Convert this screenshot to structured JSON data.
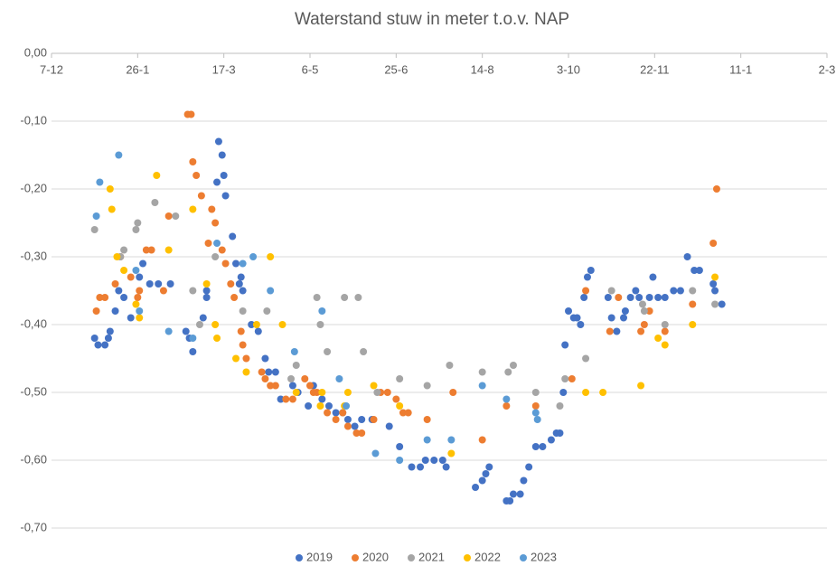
{
  "chart_data": {
    "type": "scatter",
    "title": "Waterstand stuw in meter t.o.v. NAP",
    "xlim": [
      0,
      450
    ],
    "xticks": [
      {
        "value": 0,
        "label": "7-12"
      },
      {
        "value": 50,
        "label": "26-1"
      },
      {
        "value": 100,
        "label": "17-3"
      },
      {
        "value": 150,
        "label": "6-5"
      },
      {
        "value": 200,
        "label": "25-6"
      },
      {
        "value": 250,
        "label": "14-8"
      },
      {
        "value": 300,
        "label": "3-10"
      },
      {
        "value": 350,
        "label": "22-11"
      },
      {
        "value": 400,
        "label": "11-1"
      },
      {
        "value": 450,
        "label": "2-3"
      }
    ],
    "ylim": [
      -0.7,
      0
    ],
    "yticks": [
      {
        "value": 0,
        "label": "0,00"
      },
      {
        "value": -0.1,
        "label": "-0,10"
      },
      {
        "value": -0.2,
        "label": "-0,20"
      },
      {
        "value": -0.3,
        "label": "-0,30"
      },
      {
        "value": -0.4,
        "label": "-0,40"
      },
      {
        "value": -0.5,
        "label": "-0,50"
      },
      {
        "value": -0.6,
        "label": "-0,60"
      },
      {
        "value": -0.7,
        "label": "-0,70"
      }
    ],
    "grid": true,
    "legend": "bottom",
    "series": [
      {
        "name": "2019",
        "color": "#4472c4",
        "x": [
          25,
          27,
          31,
          33,
          34,
          37,
          39,
          42,
          46,
          51,
          53,
          57,
          62,
          69,
          78,
          80,
          82,
          88,
          90,
          90,
          96,
          97,
          99,
          100,
          101,
          105,
          107,
          109,
          110,
          111,
          116,
          120,
          124,
          126,
          130,
          133,
          140,
          143,
          149,
          152,
          157,
          161,
          165,
          169,
          172,
          176,
          180,
          186,
          196,
          202,
          209,
          214,
          217,
          222,
          227,
          229,
          246,
          250,
          252,
          254,
          264,
          266,
          268,
          272,
          274,
          277,
          281,
          285,
          290,
          293,
          295,
          297,
          298,
          300,
          303,
          305,
          307,
          309,
          311,
          313,
          323,
          325,
          328,
          332,
          333,
          336,
          339,
          341,
          347,
          349,
          352,
          356,
          361,
          365,
          369,
          373,
          376,
          384,
          385,
          389
        ],
        "values": [
          -0.42,
          -0.43,
          -0.43,
          -0.42,
          -0.41,
          -0.38,
          -0.35,
          -0.36,
          -0.39,
          -0.33,
          -0.31,
          -0.34,
          -0.34,
          -0.34,
          -0.41,
          -0.42,
          -0.44,
          -0.39,
          -0.35,
          -0.36,
          -0.19,
          -0.13,
          -0.15,
          -0.18,
          -0.21,
          -0.27,
          -0.31,
          -0.34,
          -0.33,
          -0.35,
          -0.4,
          -0.41,
          -0.45,
          -0.47,
          -0.47,
          -0.51,
          -0.49,
          -0.5,
          -0.52,
          -0.49,
          -0.51,
          -0.52,
          -0.53,
          -0.53,
          -0.54,
          -0.55,
          -0.54,
          -0.54,
          -0.55,
          -0.58,
          -0.61,
          -0.61,
          -0.6,
          -0.6,
          -0.6,
          -0.61,
          -0.64,
          -0.63,
          -0.62,
          -0.61,
          -0.66,
          -0.66,
          -0.65,
          -0.65,
          -0.63,
          -0.61,
          -0.58,
          -0.58,
          -0.57,
          -0.56,
          -0.56,
          -0.5,
          -0.43,
          -0.38,
          -0.39,
          -0.39,
          -0.4,
          -0.36,
          -0.33,
          -0.32,
          -0.36,
          -0.39,
          -0.41,
          -0.39,
          -0.38,
          -0.36,
          -0.35,
          -0.36,
          -0.36,
          -0.33,
          -0.36,
          -0.36,
          -0.35,
          -0.35,
          -0.3,
          -0.32,
          -0.32,
          -0.34,
          -0.35,
          -0.37
        ]
      },
      {
        "name": "2020",
        "color": "#ed7d31",
        "x": [
          26,
          28,
          31,
          37,
          40,
          46,
          50,
          51,
          55,
          58,
          65,
          68,
          79,
          81,
          82,
          84,
          87,
          91,
          93,
          95,
          99,
          101,
          104,
          106,
          110,
          111,
          113,
          122,
          124,
          127,
          130,
          136,
          140,
          147,
          150,
          152,
          154,
          160,
          165,
          169,
          172,
          177,
          180,
          187,
          191,
          195,
          200,
          204,
          207,
          218,
          233,
          250,
          264,
          281,
          302,
          310,
          324,
          329,
          342,
          344,
          347,
          356,
          372,
          384,
          386
        ],
        "values": [
          -0.38,
          -0.36,
          -0.36,
          -0.34,
          -0.3,
          -0.33,
          -0.36,
          -0.35,
          -0.29,
          -0.29,
          -0.35,
          -0.24,
          -0.09,
          -0.09,
          -0.16,
          -0.18,
          -0.21,
          -0.28,
          -0.23,
          -0.25,
          -0.29,
          -0.31,
          -0.34,
          -0.36,
          -0.41,
          -0.43,
          -0.45,
          -0.47,
          -0.48,
          -0.49,
          -0.49,
          -0.51,
          -0.51,
          -0.48,
          -0.49,
          -0.5,
          -0.5,
          -0.53,
          -0.54,
          -0.53,
          -0.55,
          -0.56,
          -0.56,
          -0.54,
          -0.5,
          -0.5,
          -0.51,
          -0.53,
          -0.53,
          -0.54,
          -0.5,
          -0.57,
          -0.52,
          -0.52,
          -0.48,
          -0.35,
          -0.41,
          -0.36,
          -0.41,
          -0.4,
          -0.38,
          -0.41,
          -0.37,
          -0.28,
          -0.2
        ]
      },
      {
        "name": "2021",
        "color": "#a5a5a5",
        "x": [
          25,
          40,
          42,
          49,
          50,
          60,
          72,
          82,
          86,
          95,
          111,
          125,
          139,
          142,
          154,
          156,
          160,
          170,
          178,
          181,
          189,
          202,
          218,
          231,
          250,
          265,
          268,
          281,
          295,
          298,
          310,
          325,
          343,
          344,
          356,
          372,
          385
        ],
        "values": [
          -0.26,
          -0.3,
          -0.29,
          -0.26,
          -0.25,
          -0.22,
          -0.24,
          -0.35,
          -0.4,
          -0.3,
          -0.38,
          -0.38,
          -0.48,
          -0.46,
          -0.36,
          -0.4,
          -0.44,
          -0.36,
          -0.36,
          -0.44,
          -0.5,
          -0.48,
          -0.49,
          -0.46,
          -0.47,
          -0.47,
          -0.46,
          -0.5,
          -0.52,
          -0.48,
          -0.45,
          -0.35,
          -0.37,
          -0.38,
          -0.4,
          -0.35,
          -0.37
        ]
      },
      {
        "name": "2022",
        "color": "#ffc000",
        "x": [
          34,
          35,
          38,
          42,
          49,
          51,
          61,
          68,
          82,
          90,
          95,
          96,
          107,
          113,
          119,
          127,
          134,
          142,
          156,
          157,
          170,
          172,
          187,
          202,
          232,
          310,
          320,
          342,
          352,
          356,
          372,
          385
        ],
        "values": [
          -0.2,
          -0.23,
          -0.3,
          -0.32,
          -0.37,
          -0.39,
          -0.18,
          -0.29,
          -0.23,
          -0.34,
          -0.4,
          -0.42,
          -0.45,
          -0.47,
          -0.4,
          -0.3,
          -0.4,
          -0.5,
          -0.52,
          -0.5,
          -0.52,
          -0.5,
          -0.49,
          -0.52,
          -0.59,
          -0.5,
          -0.5,
          -0.49,
          -0.42,
          -0.43,
          -0.4,
          -0.33
        ]
      },
      {
        "name": "2023",
        "color": "#5b9bd5",
        "x": [
          26,
          28,
          39,
          49,
          51,
          68,
          82,
          96,
          111,
          117,
          127,
          141,
          157,
          167,
          171,
          188,
          202,
          218,
          232,
          250,
          264,
          281,
          282
        ],
        "values": [
          -0.24,
          -0.19,
          -0.15,
          -0.32,
          -0.38,
          -0.41,
          -0.42,
          -0.28,
          -0.31,
          -0.3,
          -0.35,
          -0.44,
          -0.38,
          -0.48,
          -0.52,
          -0.59,
          -0.6,
          -0.57,
          -0.57,
          -0.49,
          -0.51,
          -0.53,
          -0.54
        ]
      }
    ]
  }
}
